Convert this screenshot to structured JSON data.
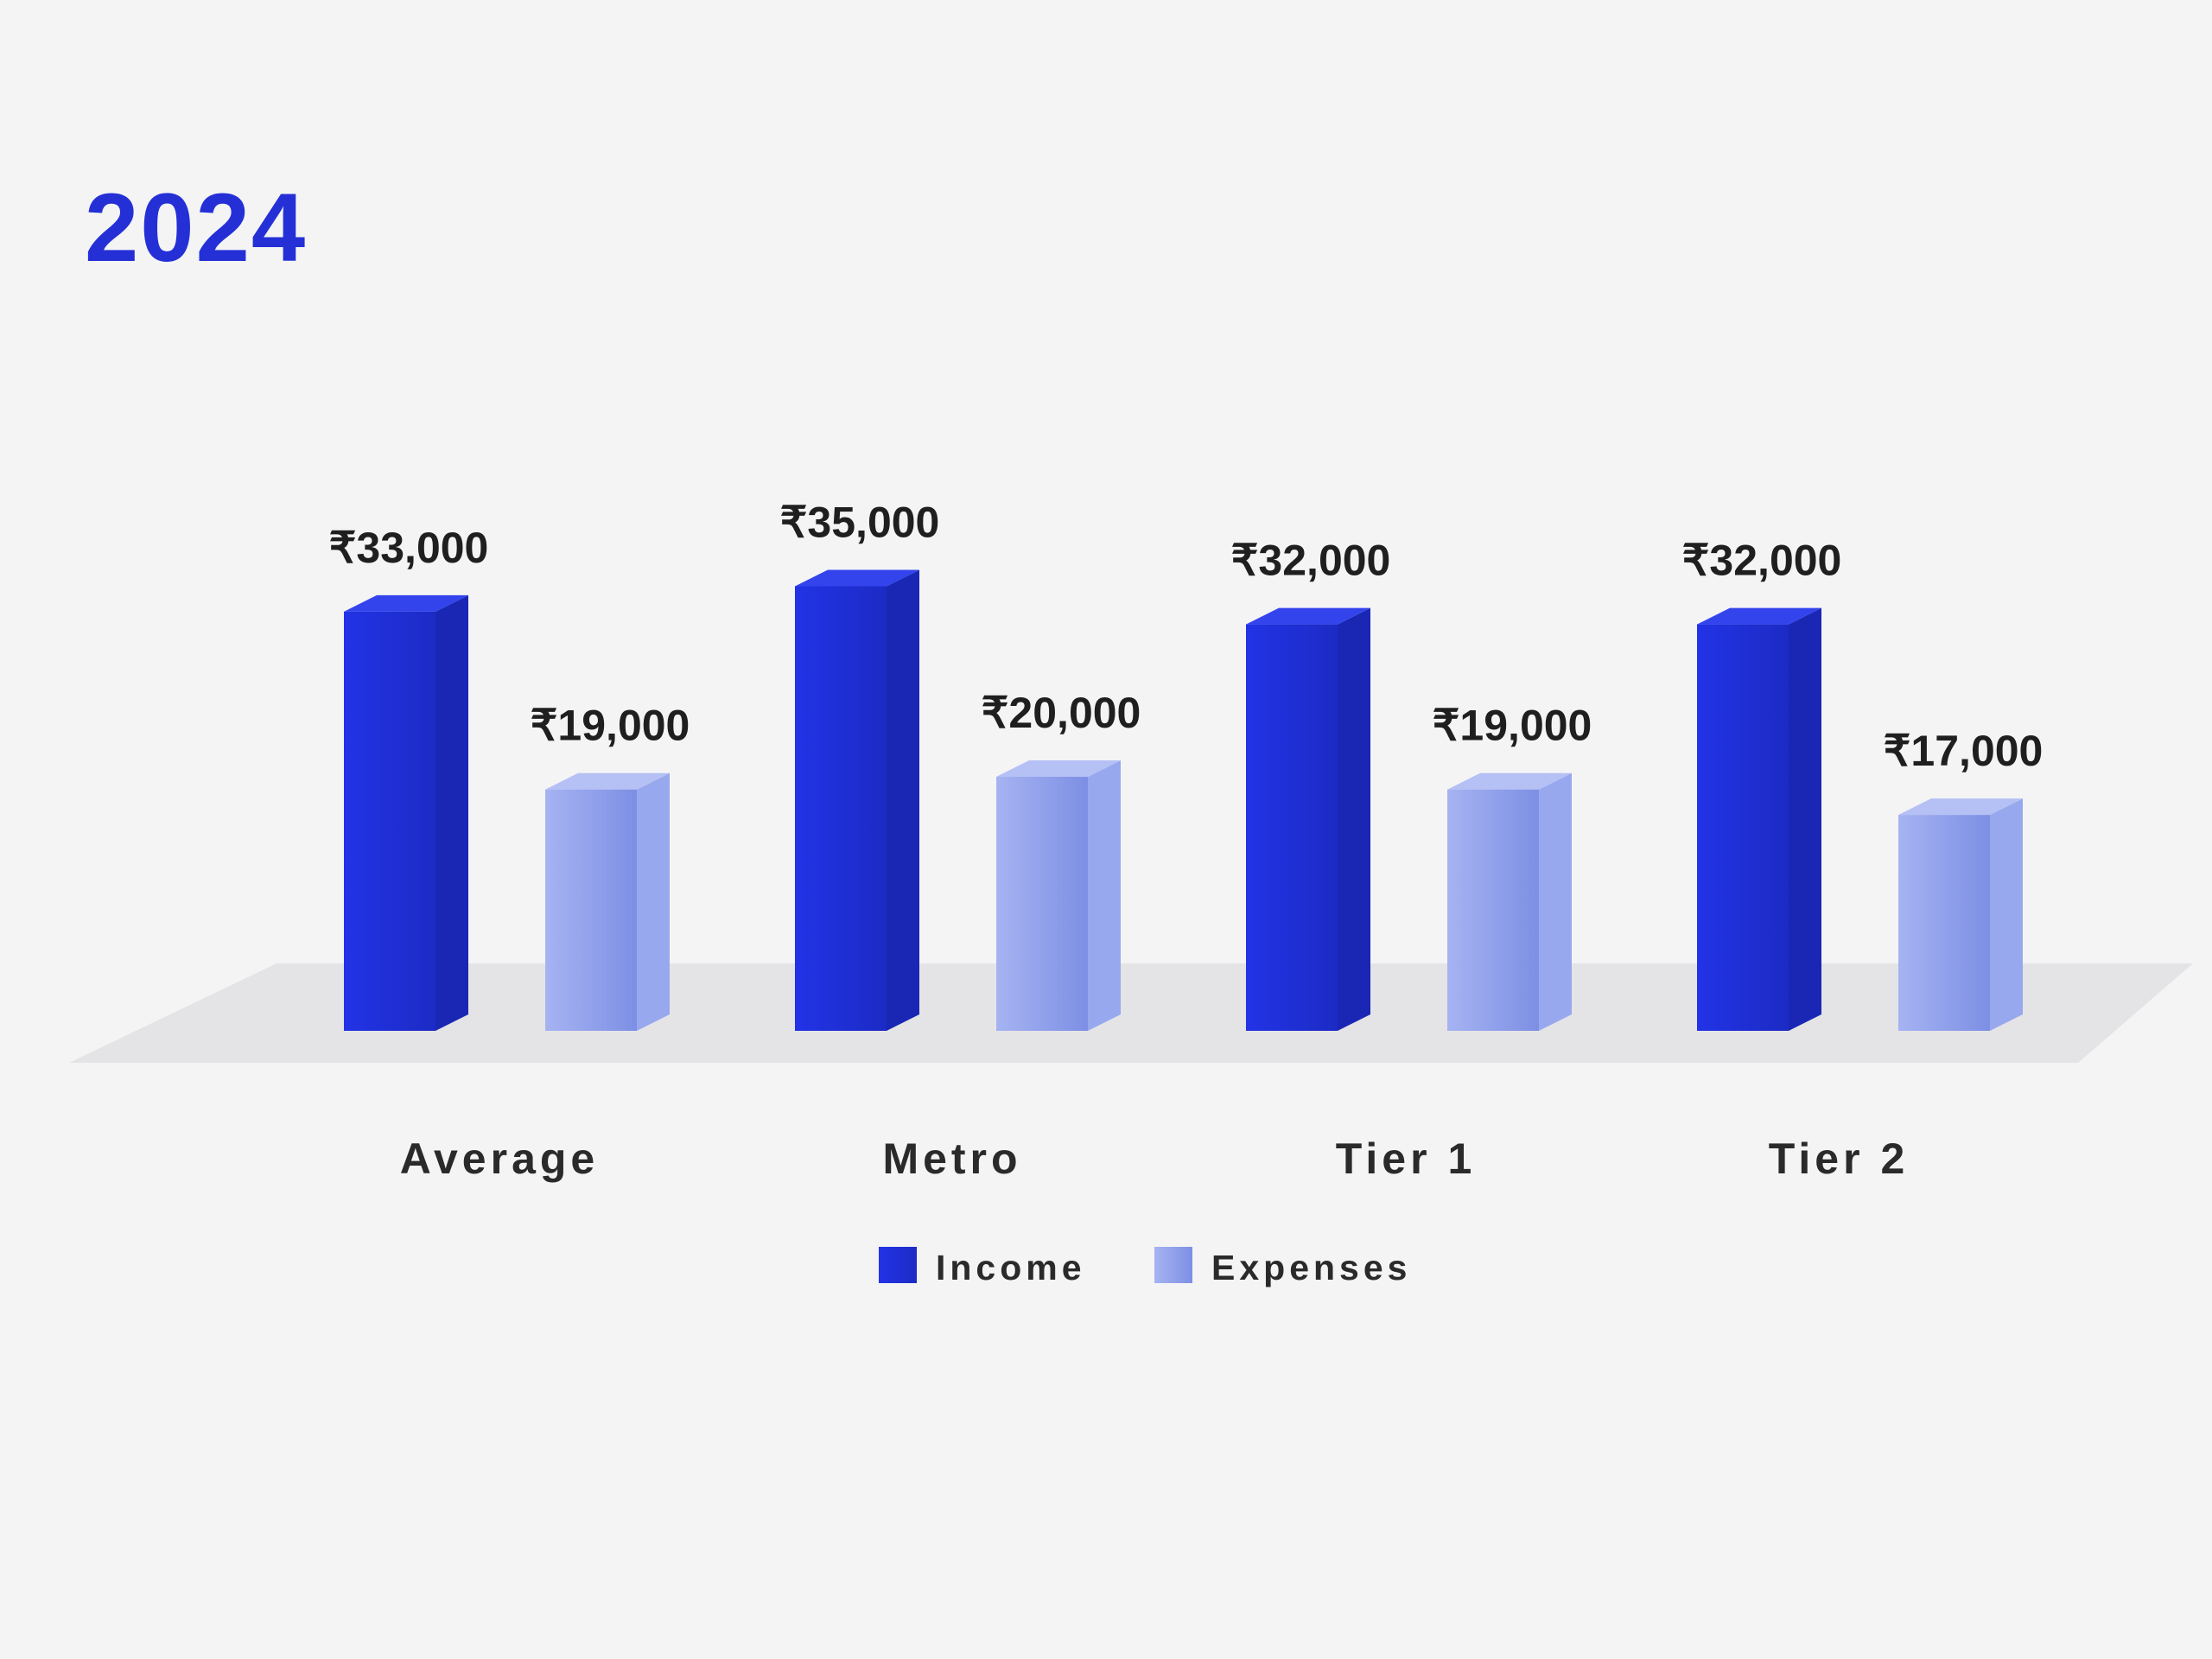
{
  "chart_data": {
    "type": "bar",
    "title": "2024",
    "categories": [
      "Average",
      "Metro",
      "Tier 1",
      "Tier 2"
    ],
    "series": [
      {
        "name": "Income",
        "values": [
          33000,
          35000,
          32000,
          32000
        ],
        "color": "#1f33e0"
      },
      {
        "name": "Expenses",
        "values": [
          19000,
          20000,
          19000,
          17000
        ],
        "color": "#8fa0ec"
      }
    ],
    "value_labels": {
      "Income": [
        "₹33,000",
        "₹35,000",
        "₹32,000",
        "₹32,000"
      ],
      "Expenses": [
        "₹19,000",
        "₹20,000",
        "₹19,000",
        "₹17,000"
      ]
    },
    "style": "3d-column",
    "grid": false,
    "legend_position": "bottom"
  }
}
